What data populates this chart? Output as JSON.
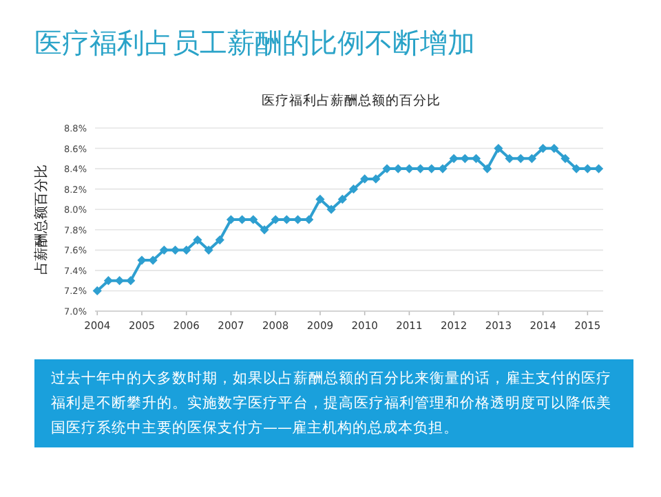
{
  "chart_data": {
    "type": "line",
    "title": "医疗福利占员工薪酬的比例不断增加",
    "subtitle": "医疗福利占薪酬总额的百分比",
    "ylabel": "占薪酬总额百分比",
    "annotations": [
      "过去十年中的大多数时期，如果以占薪酬总额的百分比来衡量的话，雇主支付的医疗福利是不断攀升的。实施数字医疗平台，提高医疗福利管理和价格透明度可以降低美国医疗系统中主要的医保支付方——雇主机构的总成本负担。"
    ],
    "x": [
      2004,
      2004.25,
      2004.5,
      2004.75,
      2005,
      2005.25,
      2005.5,
      2005.75,
      2006,
      2006.25,
      2006.5,
      2006.75,
      2007,
      2007.25,
      2007.5,
      2007.75,
      2008,
      2008.25,
      2008.5,
      2008.75,
      2009,
      2009.25,
      2009.5,
      2009.75,
      2010,
      2010.25,
      2010.5,
      2010.75,
      2011,
      2011.25,
      2011.5,
      2011.75,
      2012,
      2012.25,
      2012.5,
      2012.75,
      2013,
      2013.25,
      2013.5,
      2013.75,
      2014,
      2014.25,
      2014.5,
      2014.75,
      2015,
      2015.25
    ],
    "series": [
      {
        "color": "#2e9fd0",
        "values": [
          7.2,
          7.3,
          7.3,
          7.3,
          7.5,
          7.5,
          7.6,
          7.6,
          7.6,
          7.7,
          7.6,
          7.7,
          7.9,
          7.9,
          7.9,
          7.8,
          7.9,
          7.9,
          7.9,
          7.9,
          8.1,
          8.0,
          8.1,
          8.2,
          8.3,
          8.3,
          8.4,
          8.4,
          8.4,
          8.4,
          8.4,
          8.4,
          8.5,
          8.5,
          8.5,
          8.4,
          8.6,
          8.5,
          8.5,
          8.5,
          8.6,
          8.6,
          8.5,
          8.4,
          8.4,
          8.4
        ]
      }
    ],
    "xlim": [
      2003.95,
      2015.35
    ],
    "xticks": [
      2004,
      2005,
      2006,
      2007,
      2008,
      2009,
      2010,
      2011,
      2012,
      2013,
      2014,
      2015
    ],
    "ylim": [
      7.0,
      8.8
    ],
    "yticks": [
      {
        "value": 7.0,
        "label": "7.0%"
      },
      {
        "value": 7.2,
        "label": "7.2%"
      },
      {
        "value": 7.4,
        "label": "7.4%"
      },
      {
        "value": 7.6,
        "label": "7.6%"
      },
      {
        "value": 7.8,
        "label": "7.8%"
      },
      {
        "value": 8.0,
        "label": "8.0%"
      },
      {
        "value": 8.2,
        "label": "8.2%"
      },
      {
        "value": 8.4,
        "label": "8.4%"
      },
      {
        "value": 8.6,
        "label": "8.6%"
      },
      {
        "value": 8.8,
        "label": "8.8%"
      }
    ],
    "grid": "y",
    "marker": "diamond",
    "line_style": "solid"
  }
}
